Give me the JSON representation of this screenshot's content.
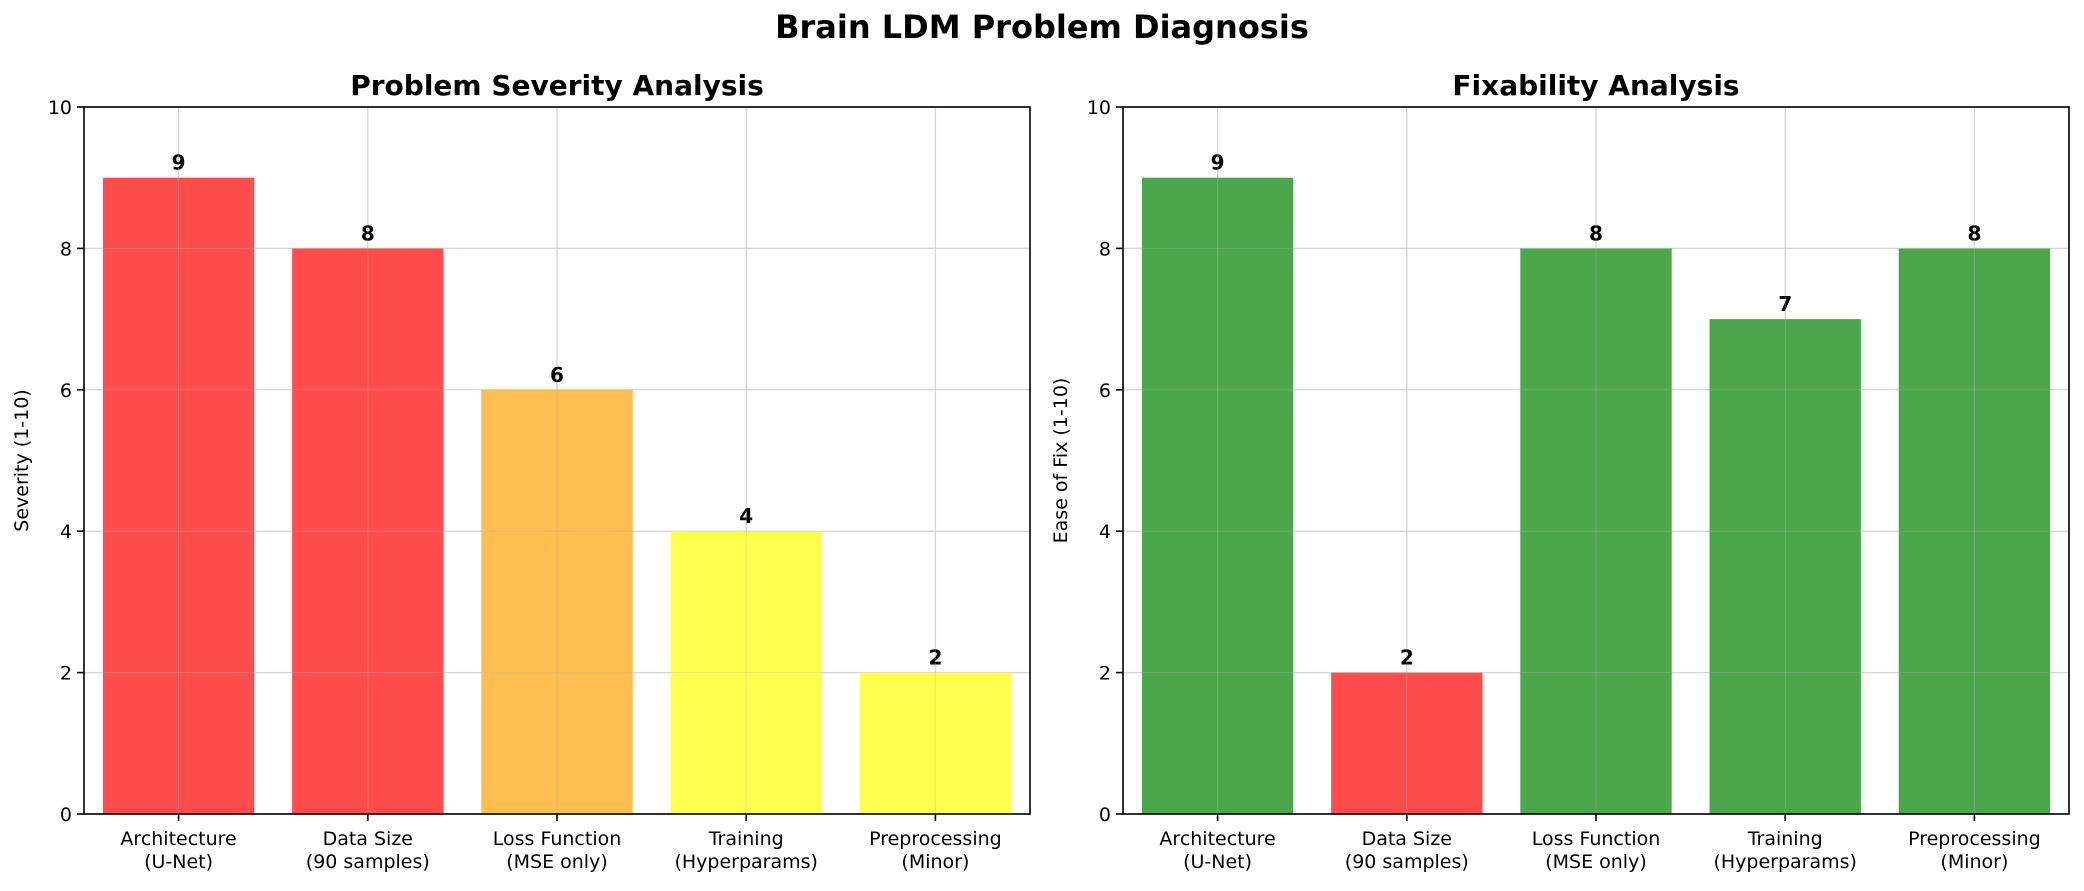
{
  "figure": {
    "title": "Brain LDM Problem Diagnosis"
  },
  "chart_data": [
    {
      "type": "bar",
      "title": "Problem Severity Analysis",
      "xlabel": "",
      "ylabel": "Severity (1-10)",
      "categories": [
        "Architecture\n(U-Net)",
        "Data Size\n(90 samples)",
        "Loss Function\n(MSE only)",
        "Training\n(Hyperparams)",
        "Preprocessing\n(Minor)"
      ],
      "values": [
        9,
        8,
        6,
        4,
        2
      ],
      "data_labels": [
        "9",
        "8",
        "6",
        "4",
        "2"
      ],
      "colors": [
        "#ff4d4d",
        "#ff4d4d",
        "#ffbe4f",
        "#ffff4d",
        "#ffff4d"
      ],
      "ylim": [
        0,
        10
      ],
      "yticks": [
        0,
        2,
        4,
        6,
        8,
        10
      ],
      "grid": true,
      "legend": "none"
    },
    {
      "type": "bar",
      "title": "Fixability Analysis",
      "xlabel": "",
      "ylabel": "Ease of Fix (1-10)",
      "categories": [
        "Architecture\n(U-Net)",
        "Data Size\n(90 samples)",
        "Loss Function\n(MSE only)",
        "Training\n(Hyperparams)",
        "Preprocessing\n(Minor)"
      ],
      "values": [
        9,
        2,
        8,
        7,
        8
      ],
      "data_labels": [
        "9",
        "2",
        "8",
        "7",
        "8"
      ],
      "colors": [
        "#4ca64c",
        "#ff4d4d",
        "#4ca64c",
        "#4ca64c",
        "#4ca64c"
      ],
      "ylim": [
        0,
        10
      ],
      "yticks": [
        0,
        2,
        4,
        6,
        8,
        10
      ],
      "grid": true,
      "legend": "none"
    }
  ]
}
